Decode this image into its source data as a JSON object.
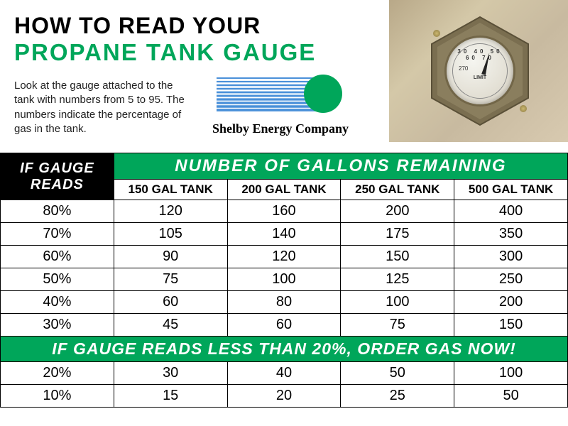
{
  "colors": {
    "brand_green": "#00a65a",
    "brand_blue": "#4a90d9",
    "black": "#000000",
    "white": "#ffffff"
  },
  "title": {
    "line1": "HOW TO READ YOUR",
    "line2": "PROPANE TANK GAUGE"
  },
  "intro": "Look at the gauge attached to the tank with numbers from 5 to 95. The numbers indicate the percentage of gas in the tank.",
  "logo": {
    "company_name": "Shelby Energy Company"
  },
  "gauge_photo": {
    "dial_numbers": "30 40 50 60 70",
    "dial_270": "270",
    "dial_limit": "LIMIT"
  },
  "table": {
    "header_left_line1": "IF GAUGE",
    "header_left_line2": "READS",
    "header_right": "NUMBER OF GALLONS REMAINING",
    "columns": [
      "150 GAL TANK",
      "200 GAL TANK",
      "250 GAL TANK",
      "500 GAL TANK"
    ],
    "rows_top": [
      {
        "gauge": "80%",
        "vals": [
          "120",
          "160",
          "200",
          "400"
        ]
      },
      {
        "gauge": "70%",
        "vals": [
          "105",
          "140",
          "175",
          "350"
        ]
      },
      {
        "gauge": "60%",
        "vals": [
          "90",
          "120",
          "150",
          "300"
        ]
      },
      {
        "gauge": "50%",
        "vals": [
          "75",
          "100",
          "125",
          "250"
        ]
      },
      {
        "gauge": "40%",
        "vals": [
          "60",
          "80",
          "100",
          "200"
        ]
      },
      {
        "gauge": "30%",
        "vals": [
          "45",
          "60",
          "75",
          "150"
        ]
      }
    ],
    "alert_text": "IF GAUGE READS LESS THAN 20%, ORDER GAS NOW!",
    "rows_bottom": [
      {
        "gauge": "20%",
        "vals": [
          "30",
          "40",
          "50",
          "100"
        ]
      },
      {
        "gauge": "10%",
        "vals": [
          "15",
          "20",
          "25",
          "50"
        ]
      }
    ]
  }
}
